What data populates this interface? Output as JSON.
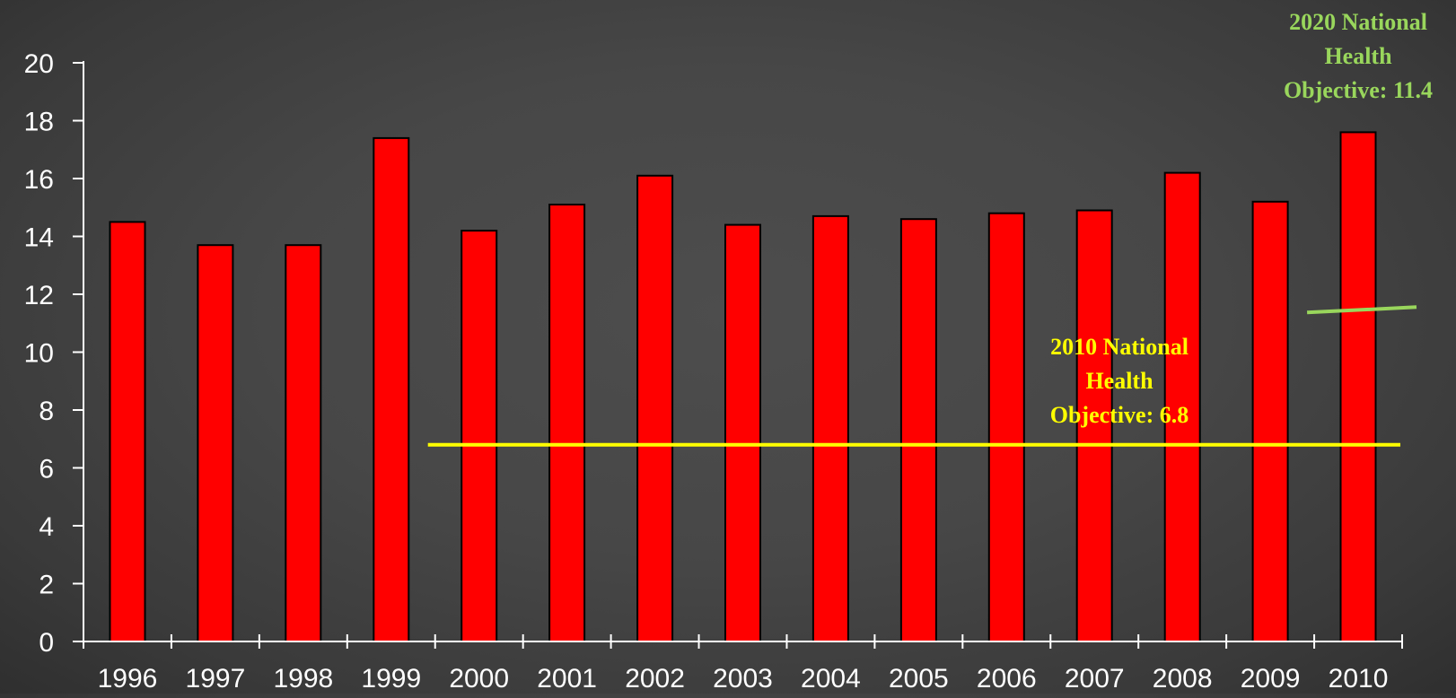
{
  "chart_data": {
    "type": "bar",
    "categories": [
      "1996",
      "1997",
      "1998",
      "1999",
      "2000",
      "2001",
      "2002",
      "2003",
      "2004",
      "2005",
      "2006",
      "2007",
      "2008",
      "2009",
      "2010"
    ],
    "values": [
      14.5,
      13.7,
      13.7,
      17.4,
      14.2,
      15.1,
      16.1,
      14.4,
      14.7,
      14.6,
      14.8,
      14.9,
      16.2,
      15.2,
      17.6
    ],
    "ylim": [
      0,
      20
    ],
    "yticks": [
      "0",
      "2",
      "4",
      "6",
      "8",
      "10",
      "12",
      "14",
      "16",
      "18",
      "20"
    ],
    "grid": false,
    "bar_color": "#ff0000",
    "reference_lines": [
      {
        "label_lines": [
          "2010 National",
          "Health",
          "Objective: 6.8"
        ],
        "value": 6.8,
        "color": "#ffff00",
        "from_category": "2000",
        "to_category": "2010"
      },
      {
        "label_lines": [
          "2020 National",
          "Health",
          "Objective: 11.4"
        ],
        "value": 11.4,
        "color": "#99d65c",
        "from_category": "2010",
        "to_category": "2010"
      }
    ]
  }
}
